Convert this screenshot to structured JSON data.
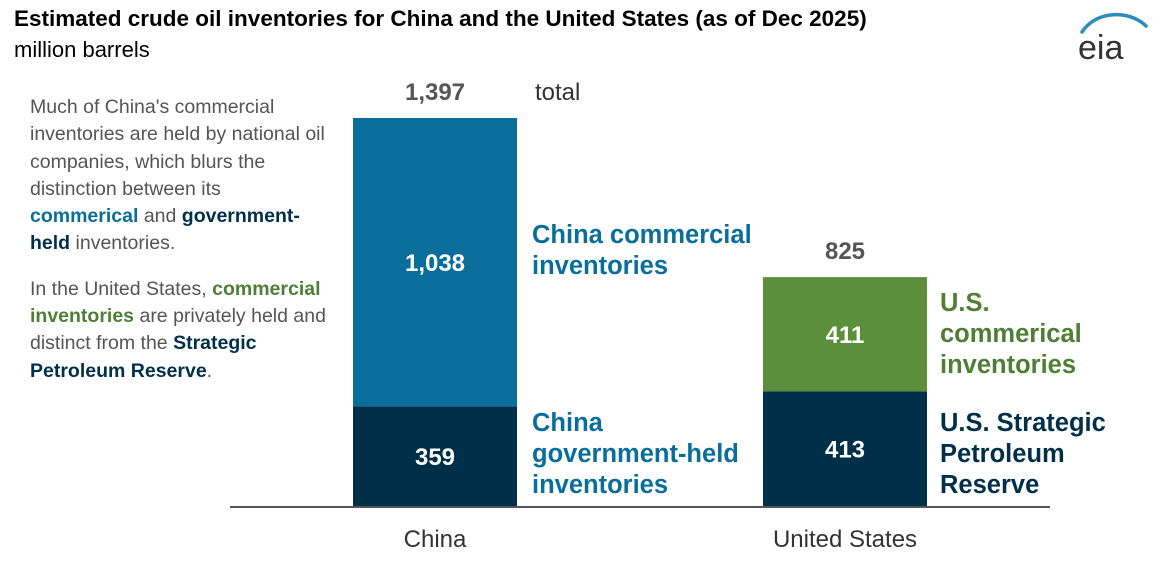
{
  "title": "Estimated crude oil inventories for China and the United States (as of Dec 2025)",
  "subtitle": "million barrels",
  "logo_text": "eia",
  "note": {
    "p1_text": "Much of China's commercial inventories are held by national oil companies, which blurs the distinction between its",
    "p1_blue": "commerical",
    "p1_and": "and",
    "p1_navy": "government-held",
    "p1_end": "inventories.",
    "p2_text": "In the United States,",
    "p2_green": "commercial inventories",
    "p2_mid": "are privately held and distinct from the",
    "p2_navy": "Strategic Petroleum Reserve",
    "p2_end": "."
  },
  "colors": {
    "china_commercial": "#0A6E9C",
    "china_government": "#003049",
    "us_commercial": "#5B8F3C",
    "us_spr": "#003049",
    "axis": "#555555"
  },
  "chart_data": {
    "type": "bar",
    "stacked": true,
    "categories": [
      "China",
      "United States"
    ],
    "totals": [
      "1,397",
      "825"
    ],
    "total_word": "total",
    "ylim": [
      0,
      1397
    ],
    "series": [
      {
        "category": "China",
        "lower": {
          "name": "China government-held inventories",
          "value": 359,
          "label": "359"
        },
        "upper": {
          "name": "China commercial inventories",
          "value": 1038,
          "label": "1,038"
        }
      },
      {
        "category": "United States",
        "lower": {
          "name": "U.S. Strategic Petroleum Reserve",
          "value": 413,
          "label": "413"
        },
        "upper": {
          "name": "U.S. commerical inventories",
          "value": 411,
          "label": "411"
        }
      }
    ]
  }
}
